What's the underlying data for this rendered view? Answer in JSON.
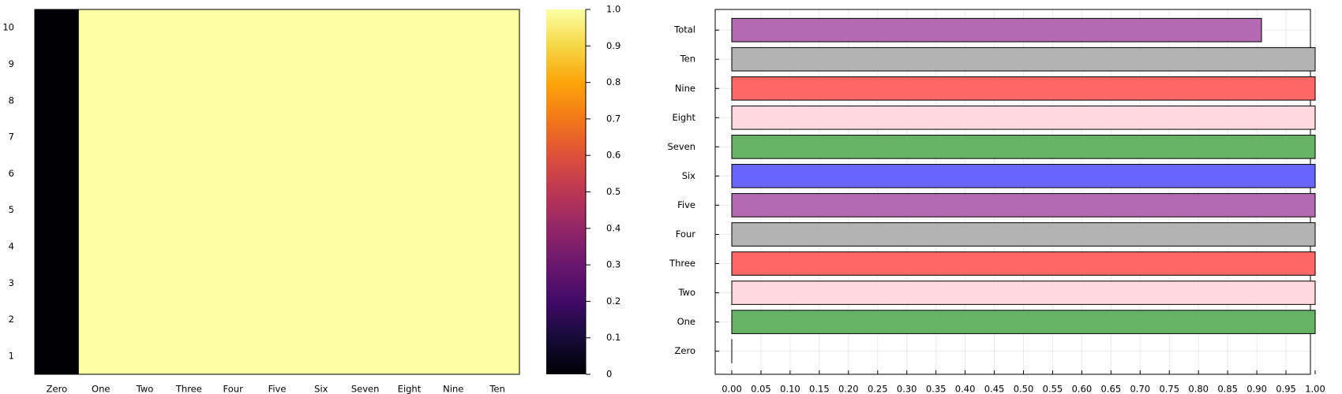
{
  "chart_data": [
    {
      "type": "heatmap",
      "title": "",
      "x_categories": [
        "Zero",
        "One",
        "Two",
        "Three",
        "Four",
        "Five",
        "Six",
        "Seven",
        "Eight",
        "Nine",
        "Ten"
      ],
      "y_ticks": [
        "1",
        "2",
        "3",
        "4",
        "5",
        "6",
        "7",
        "8",
        "9",
        "10"
      ],
      "y_range": [
        0.5,
        10.5
      ],
      "values_by_column": [
        0,
        1,
        1,
        1,
        1,
        1,
        1,
        1,
        1,
        1,
        1
      ],
      "colorbar": {
        "colormap": "inferno",
        "range": [
          0,
          1
        ],
        "ticks": [
          "0",
          "0.1",
          "0.2",
          "0.3",
          "0.4",
          "0.5",
          "0.6",
          "0.7",
          "0.8",
          "0.9",
          "1.0"
        ]
      }
    },
    {
      "type": "bar",
      "orientation": "horizontal",
      "title": "",
      "categories": [
        "Zero",
        "One",
        "Two",
        "Three",
        "Four",
        "Five",
        "Six",
        "Seven",
        "Eight",
        "Nine",
        "Ten",
        "Total"
      ],
      "values": [
        0,
        1,
        1,
        1,
        1,
        1,
        1,
        1,
        1,
        1,
        1,
        0.908
      ],
      "colors": [
        "#b36ab3",
        "#66b366",
        "#ffd9de",
        "#ff6666",
        "#b3b3b3",
        "#b36ab3",
        "#6666ff",
        "#66b366",
        "#ffd9de",
        "#ff6666",
        "#b3b3b3",
        "#b36ab3"
      ],
      "xlim": [
        0,
        1
      ],
      "x_ticks": [
        "0.00",
        "0.05",
        "0.10",
        "0.15",
        "0.20",
        "0.25",
        "0.30",
        "0.35",
        "0.40",
        "0.45",
        "0.50",
        "0.55",
        "0.60",
        "0.65",
        "0.70",
        "0.75",
        "0.80",
        "0.85",
        "0.90",
        "0.95",
        "1.00"
      ],
      "grid": true,
      "legend": "none"
    }
  ]
}
